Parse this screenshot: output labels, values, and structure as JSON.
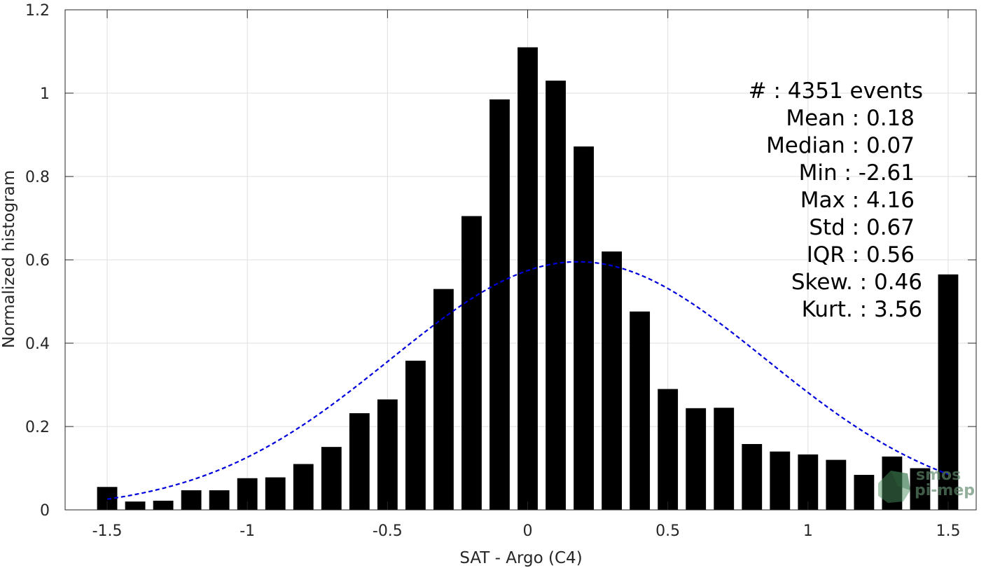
{
  "chart_data": {
    "type": "bar",
    "xlabel": "SAT - Argo (C4)",
    "ylabel": "Normalized histogram",
    "xlim": [
      -1.65,
      1.6
    ],
    "ylim": [
      0,
      1.2
    ],
    "xticks": [
      -1.5,
      -1,
      -0.5,
      0,
      0.5,
      1,
      1.5
    ],
    "xtick_labels": [
      "-1.5",
      "-1",
      "-0.5",
      "0",
      "0.5",
      "1",
      "1.5"
    ],
    "yticks": [
      0,
      0.2,
      0.4,
      0.6,
      0.8,
      1.0,
      1.2
    ],
    "ytick_labels": [
      "0",
      "0.2",
      "0.4",
      "0.6",
      "0.8",
      "1",
      "1.2"
    ],
    "grid": true,
    "bar_color": "#000000",
    "bar_width": 0.072,
    "x": [
      -1.5,
      -1.4,
      -1.3,
      -1.2,
      -1.1,
      -1.0,
      -0.9,
      -0.8,
      -0.7,
      -0.6,
      -0.5,
      -0.4,
      -0.3,
      -0.2,
      -0.1,
      0.0,
      0.1,
      0.2,
      0.3,
      0.4,
      0.5,
      0.6,
      0.7,
      0.8,
      0.9,
      1.0,
      1.1,
      1.2,
      1.3,
      1.4,
      1.5
    ],
    "values": [
      0.055,
      0.02,
      0.022,
      0.047,
      0.047,
      0.076,
      0.078,
      0.11,
      0.151,
      0.232,
      0.265,
      0.358,
      0.53,
      0.705,
      0.985,
      1.11,
      1.03,
      0.872,
      0.62,
      0.476,
      0.29,
      0.244,
      0.245,
      0.158,
      0.14,
      0.133,
      0.12,
      0.084,
      0.128,
      0.1,
      0.565
    ],
    "fit": {
      "type": "gaussian",
      "mean": 0.18,
      "std": 0.67,
      "x_range": [
        -1.5,
        1.5
      ],
      "color": "#0000dd",
      "style": "dashed"
    },
    "annotations": [
      "#  : 4351 events",
      "Mean : 0.18",
      "Median : 0.07",
      "Min : -2.61",
      "Max : 4.16",
      "Std : 0.67",
      "IQR : 0.56",
      "Skew. : 0.46",
      "Kurt. : 3.56"
    ]
  },
  "logo": {
    "line1": "smos",
    "line2": "pi-mep"
  }
}
